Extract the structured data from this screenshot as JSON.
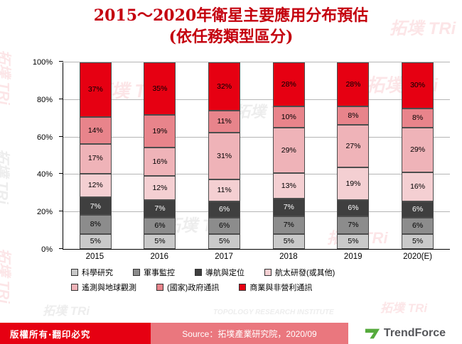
{
  "title": {
    "line1": "2015～2020年衛星主要應用分布預估",
    "line2": "(依任務類型區分)"
  },
  "chart_data": {
    "type": "bar",
    "stacked": true,
    "stacked_100_percent": true,
    "grid": true,
    "legend_position": "bottom",
    "categories": [
      "2015",
      "2016",
      "2017",
      "2018",
      "2019",
      "2020(E)"
    ],
    "series": [
      {
        "name": "科學研究",
        "color": "#c9c9c9",
        "label_color": "#000000",
        "values": [
          5,
          5,
          5,
          5,
          5,
          5
        ]
      },
      {
        "name": "軍事監控",
        "color": "#8c8c8c",
        "label_color": "#000000",
        "values": [
          8,
          6,
          6,
          7,
          7,
          6
        ]
      },
      {
        "name": "導航與定位",
        "color": "#3f3f3f",
        "label_color": "#ffffff",
        "values": [
          7,
          7,
          6,
          7,
          6,
          6
        ]
      },
      {
        "name": "航太研發(或其他)",
        "color": "#f4cfd2",
        "label_color": "#000000",
        "values": [
          12,
          12,
          11,
          13,
          19,
          16
        ]
      },
      {
        "name": "遙測與地球觀測",
        "color": "#efb3b8",
        "label_color": "#000000",
        "values": [
          17,
          16,
          31,
          29,
          27,
          29
        ]
      },
      {
        "name": "(國家)政府通訊",
        "color": "#e8848b",
        "label_color": "#000000",
        "values": [
          14,
          19,
          11,
          10,
          8,
          8
        ]
      },
      {
        "name": "商業與非營利通訊",
        "color": "#e60012",
        "label_color": "#000000",
        "values": [
          37,
          35,
          32,
          28,
          28,
          30
        ]
      }
    ],
    "ylim": [
      0,
      100
    ],
    "yticks": [
      {
        "pct": 0,
        "label": "0%"
      },
      {
        "pct": 20,
        "label": "20%"
      },
      {
        "pct": 40,
        "label": "40%"
      },
      {
        "pct": 60,
        "label": "60%"
      },
      {
        "pct": 80,
        "label": "80%"
      },
      {
        "pct": 100,
        "label": "100%"
      }
    ],
    "legend_rows": [
      [
        0,
        1,
        2,
        3
      ],
      [
        4,
        5,
        6
      ]
    ]
  },
  "watermark": {
    "text": "拓墣 TRi",
    "subtext": "TOPOLOGY RESEARCH INSTITUTE"
  },
  "footer": {
    "copyright": "版權所有‧翻印必究",
    "source": "Source：拓墣產業研究院，2020/09",
    "brand": "TrendForce"
  }
}
